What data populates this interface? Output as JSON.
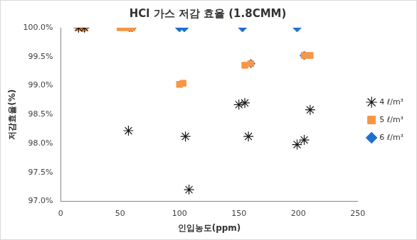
{
  "chart_data": {
    "type": "scatter",
    "title": "HCl 가스 저감 효율 (1.8CMM)",
    "x_label": "인입농도(ppm)",
    "y_label": "저감효율(%)",
    "xlim": [
      0,
      250
    ],
    "xticks": [
      0,
      50,
      100,
      150,
      200,
      250
    ],
    "ylim": [
      97.0,
      100.0
    ],
    "yticks": [
      {
        "value": 97.0,
        "label": "97.0%"
      },
      {
        "value": 97.5,
        "label": "97.5%"
      },
      {
        "value": 98.0,
        "label": "98.0%"
      },
      {
        "value": 98.5,
        "label": "98.5%"
      },
      {
        "value": 99.0,
        "label": "99.0%"
      },
      {
        "value": 99.5,
        "label": "99.5%"
      },
      {
        "value": 100.0,
        "label": "100.0%"
      }
    ],
    "grid": false,
    "legend": "right",
    "series": [
      {
        "name": "4 ℓ/m³",
        "color": "#1a1a1a",
        "marker": "star",
        "x": [
          15,
          20,
          57,
          105,
          108,
          150,
          155,
          158,
          199,
          205,
          210
        ],
        "values": [
          100.0,
          100.0,
          98.22,
          98.12,
          97.2,
          98.67,
          98.7,
          98.12,
          97.98,
          98.06,
          98.58
        ]
      },
      {
        "name": "5 ℓ/m³",
        "color": "#f79646",
        "marker": "square",
        "x": [
          15,
          20,
          50,
          55,
          60,
          100,
          103,
          155,
          160,
          205,
          210
        ],
        "values": [
          100.0,
          100.0,
          100.0,
          100.0,
          100.0,
          99.02,
          99.04,
          99.35,
          99.38,
          99.52,
          99.52
        ]
      },
      {
        "name": "6 ℓ/m³",
        "color": "#1f6fd1",
        "marker": "diamond",
        "x": [
          18,
          20,
          58,
          60,
          100,
          104,
          153,
          160,
          199,
          205
        ],
        "values": [
          100.0,
          100.0,
          100.0,
          100.0,
          100.0,
          100.0,
          100.0,
          99.38,
          100.0,
          99.52
        ]
      }
    ]
  }
}
